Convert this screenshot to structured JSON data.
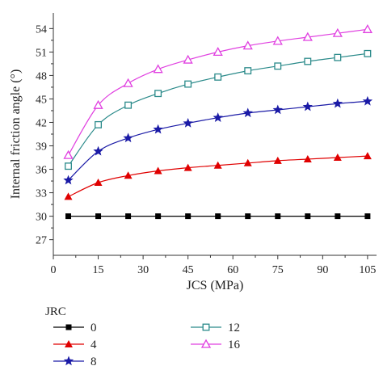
{
  "chart_data": {
    "type": "line",
    "xlabel": "JCS (MPa)",
    "ylabel": "Internal friction angle (°)",
    "xlim": [
      0,
      108
    ],
    "ylim": [
      25,
      56
    ],
    "xticks": [
      0,
      15,
      30,
      45,
      60,
      75,
      90,
      105
    ],
    "yticks": [
      27,
      30,
      33,
      36,
      39,
      42,
      45,
      48,
      51,
      54
    ],
    "legend_title": "JRC",
    "legend_position": "below",
    "grid": false,
    "x": [
      5,
      15,
      25,
      35,
      45,
      55,
      65,
      75,
      85,
      95,
      105
    ],
    "series": [
      {
        "name": "0",
        "color": "#000000",
        "marker": "square-filled",
        "values": [
          30.0,
          30.0,
          30.0,
          30.0,
          30.0,
          30.0,
          30.0,
          30.0,
          30.0,
          30.0,
          30.0
        ]
      },
      {
        "name": "4",
        "color": "#e00000",
        "marker": "triangle-filled",
        "values": [
          32.5,
          34.3,
          35.2,
          35.8,
          36.2,
          36.5,
          36.8,
          37.1,
          37.3,
          37.5,
          37.7
        ]
      },
      {
        "name": "8",
        "color": "#1a1aa6",
        "marker": "star-filled",
        "values": [
          34.6,
          38.3,
          40.0,
          41.1,
          41.9,
          42.6,
          43.2,
          43.6,
          44.0,
          44.4,
          44.7
        ]
      },
      {
        "name": "12",
        "color": "#2a8a8a",
        "marker": "square-open",
        "values": [
          36.4,
          41.7,
          44.2,
          45.7,
          46.9,
          47.8,
          48.6,
          49.2,
          49.8,
          50.3,
          50.8
        ]
      },
      {
        "name": "16",
        "color": "#e040e0",
        "marker": "triangle-open",
        "values": [
          37.8,
          44.2,
          47.0,
          48.8,
          50.0,
          51.0,
          51.8,
          52.4,
          52.9,
          53.4,
          53.9
        ]
      }
    ]
  }
}
